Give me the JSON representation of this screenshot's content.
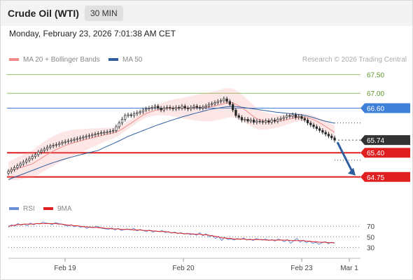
{
  "header": {
    "title": "Crude Oil (WTI)",
    "timeframe": "30 MIN",
    "datetime": "Monday, February 23, 2026 7:01:38 AM CET"
  },
  "legend": {
    "items": [
      {
        "label": "MA 20 + Bollinger Bands",
        "color": "#f08c8c"
      },
      {
        "label": "MA 50",
        "color": "#2f5f9f"
      }
    ],
    "credit": "Research © 2026 Trading Central"
  },
  "chart_data": [
    {
      "type": "candlestick",
      "title": "",
      "price_range": [
        64.2,
        67.7
      ],
      "x_ticks": [
        "Feb 19",
        "Feb 20",
        "Feb 23",
        "Mar 1"
      ],
      "levels": [
        {
          "value": 67.5,
          "label": "67.50",
          "style": "resistance-green"
        },
        {
          "value": 67.0,
          "label": "67.00",
          "style": "resistance-green"
        },
        {
          "value": 66.6,
          "label": "66.60",
          "style": "pivot-blue"
        },
        {
          "value": 65.74,
          "label": "65.74",
          "style": "last-price"
        },
        {
          "value": 65.4,
          "label": "65.40",
          "style": "support-red"
        },
        {
          "value": 64.75,
          "label": "64.75",
          "style": "support-red"
        }
      ],
      "close_series": [
        64.9,
        64.95,
        65.0,
        65.05,
        65.1,
        65.15,
        65.2,
        65.25,
        65.3,
        65.35,
        65.42,
        65.46,
        65.5,
        65.55,
        65.58,
        65.6,
        65.62,
        65.65,
        65.68,
        65.7,
        65.72,
        65.74,
        65.76,
        65.78,
        65.8,
        65.82,
        65.84,
        65.86,
        65.88,
        65.9,
        65.92,
        65.94,
        65.95,
        65.96,
        65.98,
        66.0,
        66.1,
        66.2,
        66.3,
        66.4,
        66.42,
        66.4,
        66.45,
        66.48,
        66.5,
        66.55,
        66.58,
        66.6,
        66.62,
        66.65,
        66.6,
        66.55,
        66.6,
        66.62,
        66.6,
        66.58,
        66.62,
        66.6,
        66.65,
        66.6,
        66.58,
        66.62,
        66.65,
        66.62,
        66.6,
        66.63,
        66.66,
        66.7,
        66.72,
        66.75,
        66.78,
        66.8,
        66.85,
        66.78,
        66.7,
        66.55,
        66.4,
        66.35,
        66.28,
        66.3,
        66.25,
        66.28,
        66.22,
        66.25,
        66.24,
        66.22,
        66.26,
        66.22,
        66.28,
        66.25,
        66.3,
        66.32,
        66.35,
        66.4,
        66.38,
        66.42,
        66.35,
        66.38,
        66.32,
        66.28,
        66.2,
        66.15,
        66.1,
        66.05,
        66.0,
        65.95,
        65.9,
        65.85,
        65.8,
        65.74
      ],
      "ma20_bands": {
        "center": "red line",
        "fill": "rgba(240,140,140,0.2)"
      },
      "ma50": {
        "color": "#2f5f9f"
      },
      "forecast_arrow": {
        "from": 65.74,
        "to": 64.75,
        "color": "#2f5f9f"
      }
    },
    {
      "type": "line",
      "title": "",
      "series": [
        {
          "name": "RSI",
          "color": "#6a8fd8"
        },
        {
          "name": "9MA",
          "color": "#e02020"
        }
      ],
      "ylim": [
        15,
        90
      ],
      "y_ticks": [
        "70",
        "50",
        "30"
      ],
      "rsi_series": [
        68,
        73,
        70,
        75,
        72,
        74,
        71,
        76,
        73,
        75,
        74,
        78,
        76,
        75,
        73,
        77,
        75,
        74,
        72,
        70,
        73,
        69,
        71,
        68,
        70,
        66,
        69,
        67,
        70,
        68,
        66,
        65,
        64,
        67,
        63,
        66,
        62,
        64,
        65,
        63,
        66,
        61,
        64,
        62,
        60,
        63,
        59,
        61,
        60,
        62,
        58,
        60,
        57,
        59,
        56,
        58,
        55,
        57,
        54,
        56,
        53,
        58,
        52,
        56,
        50,
        53,
        47,
        51,
        43,
        49,
        45,
        46,
        44,
        47,
        45,
        48,
        44,
        46,
        43,
        47,
        45,
        44,
        46,
        43,
        45,
        42,
        46,
        44,
        41,
        45,
        38,
        43,
        47,
        40,
        44,
        39,
        42,
        38,
        40,
        36,
        39,
        41,
        37,
        40,
        38
      ],
      "ma9_series": [
        70,
        71,
        72,
        73,
        73,
        74,
        74,
        74,
        74,
        75,
        75,
        75,
        75,
        75,
        75,
        75,
        74,
        74,
        73,
        72,
        72,
        71,
        71,
        70,
        69,
        69,
        68,
        68,
        68,
        67,
        67,
        66,
        66,
        65,
        65,
        65,
        64,
        64,
        64,
        64,
        63,
        63,
        63,
        62,
        62,
        62,
        61,
        61,
        60,
        60,
        60,
        59,
        58,
        58,
        57,
        57,
        56,
        56,
        56,
        55,
        55,
        55,
        54,
        54,
        53,
        52,
        51,
        50,
        48,
        48,
        47,
        47,
        46,
        46,
        46,
        46,
        45,
        45,
        45,
        45,
        45,
        45,
        44,
        44,
        44,
        44,
        44,
        44,
        44,
        44,
        43,
        43,
        43,
        43,
        43,
        42,
        42,
        41,
        41,
        40,
        40,
        40,
        39,
        39,
        39
      ]
    }
  ]
}
